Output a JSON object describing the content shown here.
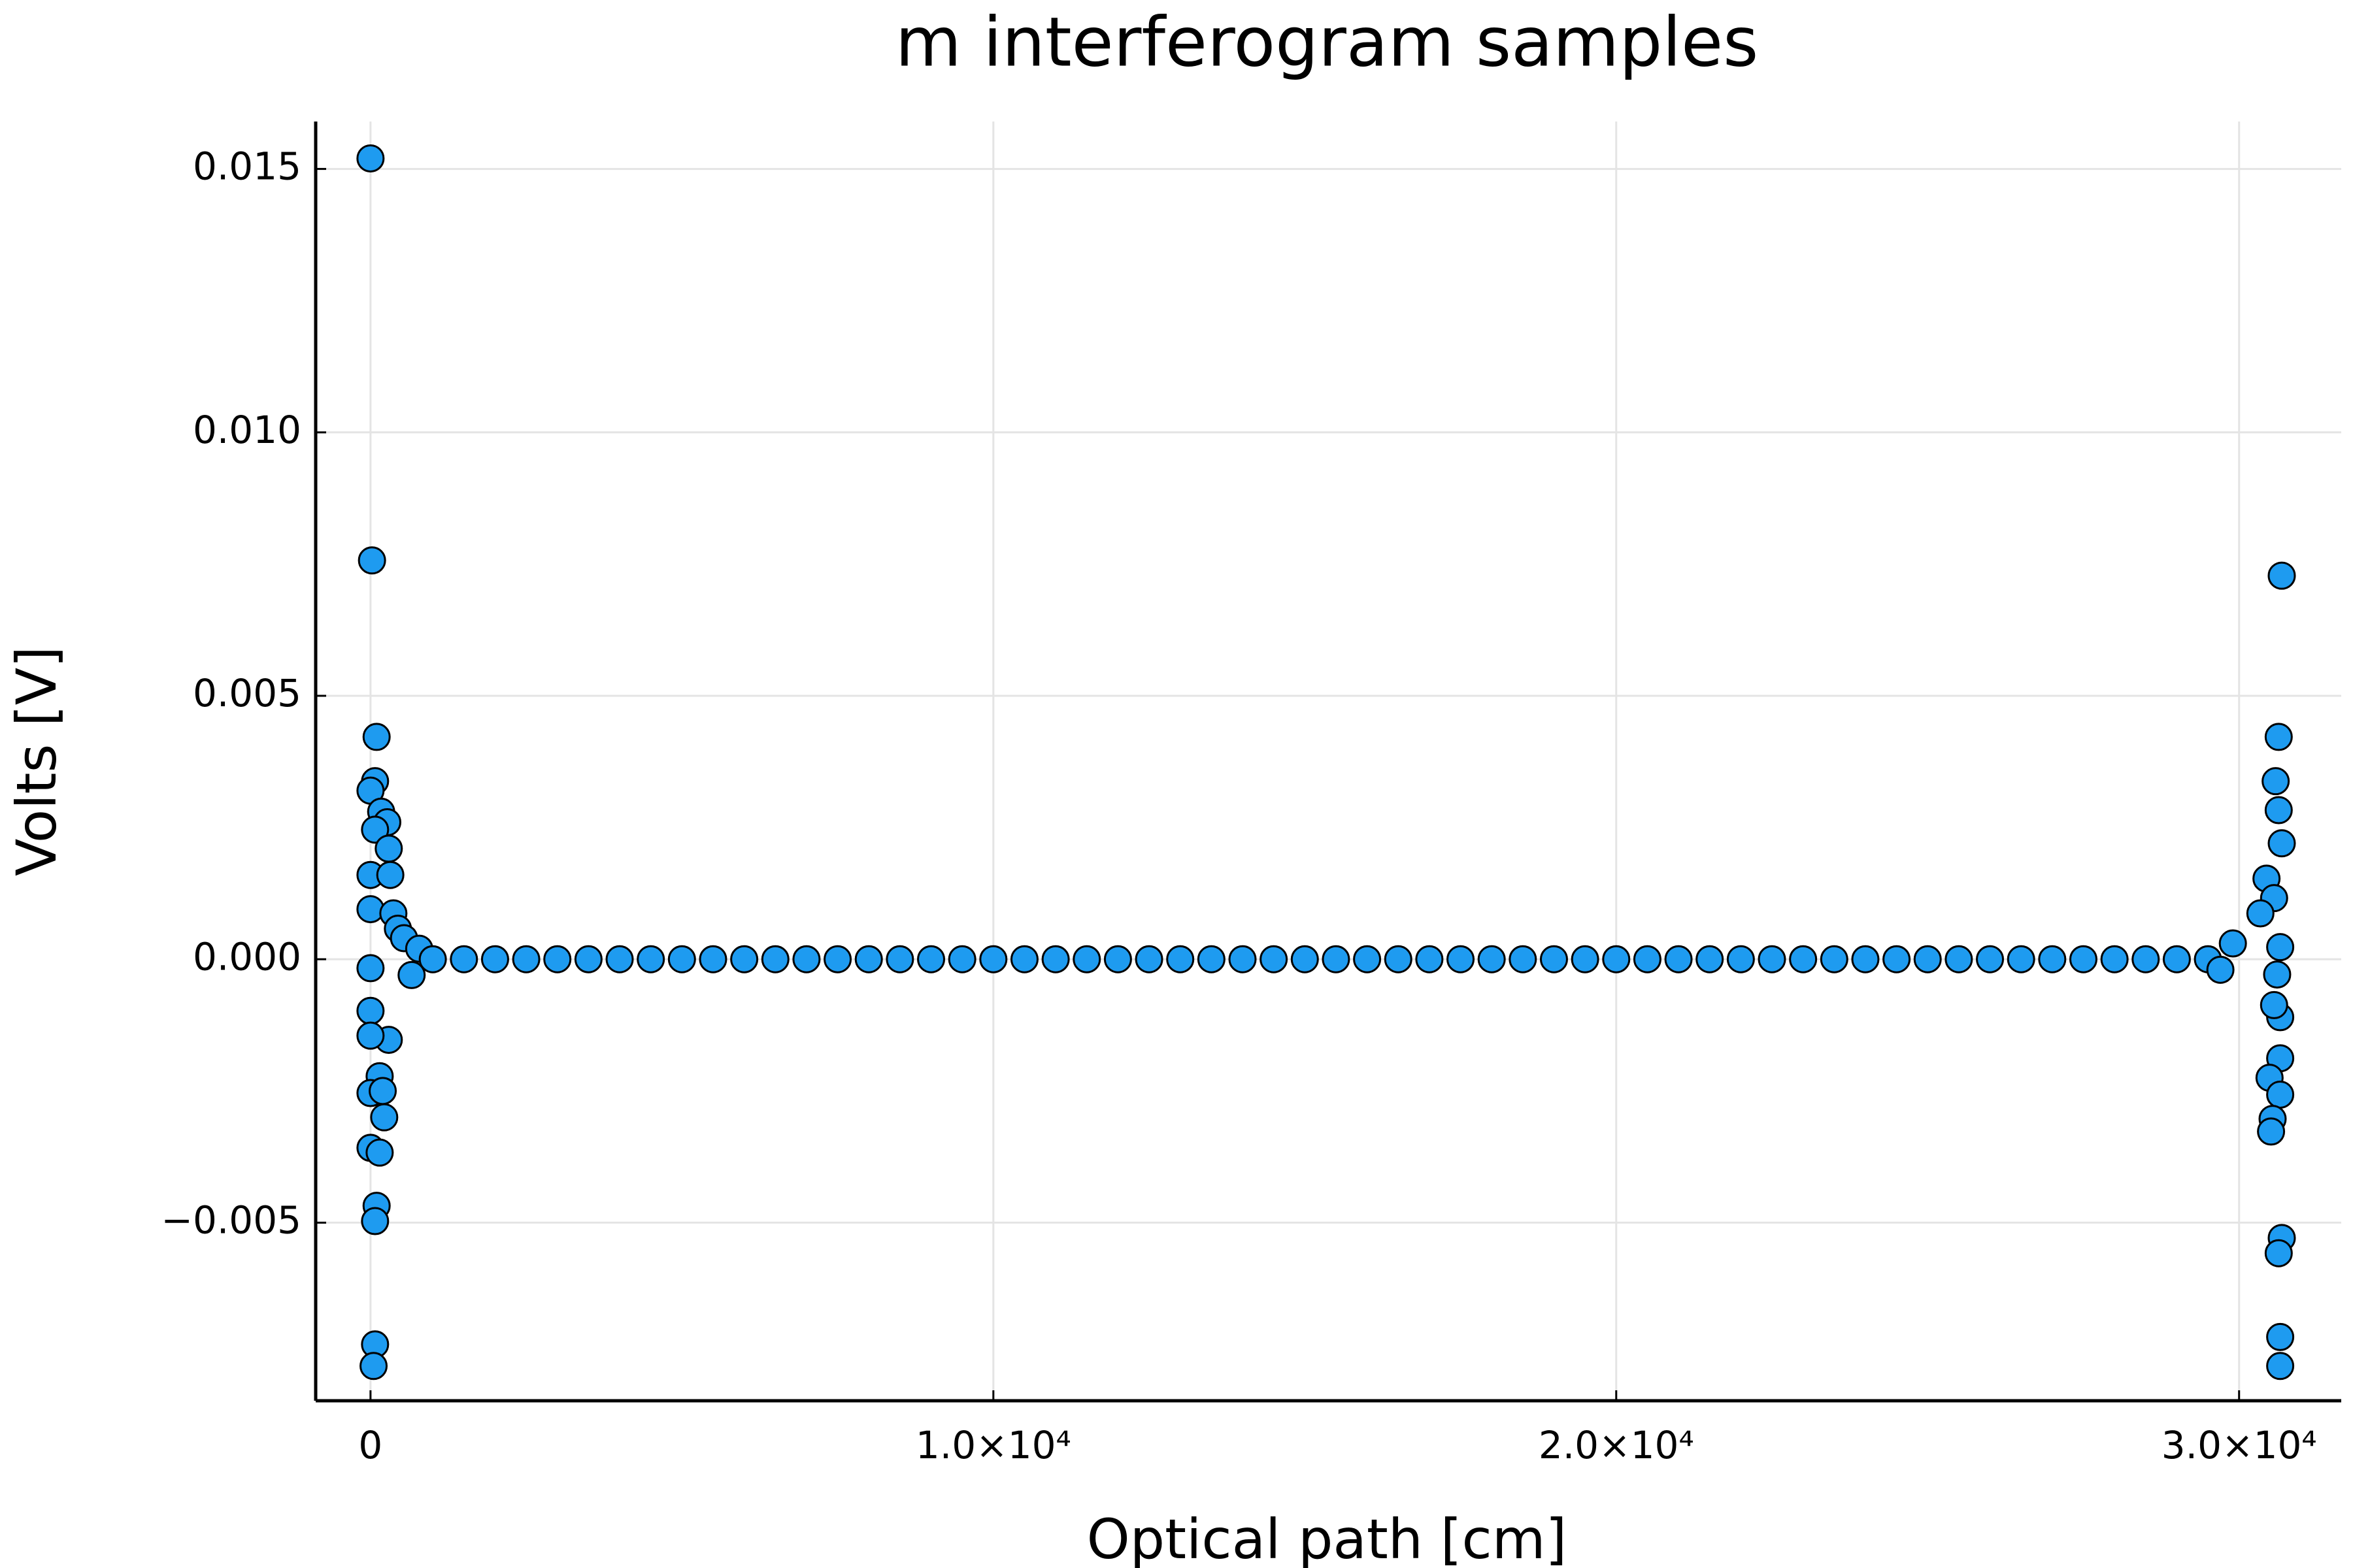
{
  "chart_data": {
    "type": "scatter",
    "title": "m interferogram samples",
    "x_label": "Optical path [cm]",
    "y_label": "Volts [V]",
    "color": "#1e9bf0",
    "grid": true,
    "xlim": [
      -880,
      31640
    ],
    "ylim": [
      -0.00838,
      0.0159
    ],
    "xticks": [
      0,
      {
        "value": 10000,
        "label": "1.0×10⁴"
      },
      {
        "value": 20000,
        "label": "2.0×10⁴"
      },
      {
        "value": 30000,
        "label": "3.0×10⁴"
      }
    ],
    "yticks": [
      {
        "value": -0.005,
        "label": "−0.005"
      },
      {
        "value": 0,
        "label": "0.000"
      },
      0.005,
      {
        "value": 0.01,
        "label": "0.010"
      },
      0.015
    ],
    "x": [
      0,
      24,
      98,
      73,
      0,
      171,
      269,
      73,
      293,
      0,
      318,
      0,
      367,
      440,
      0,
      0,
      293,
      0,
      147,
      0,
      196,
      220,
      0,
      147,
      98,
      73,
      73,
      49,
      538,
      660,
      782,
      1000,
      1500,
      2000,
      2500,
      3000,
      3500,
      4000,
      4500,
      5000,
      5500,
      6000,
      6500,
      7000,
      7500,
      8000,
      8500,
      9000,
      9500,
      10000,
      10500,
      11000,
      11500,
      12000,
      12500,
      13000,
      13500,
      14000,
      14500,
      15000,
      15500,
      16000,
      16500,
      17000,
      17500,
      18000,
      18500,
      19000,
      19500,
      20000,
      20500,
      21000,
      21500,
      22000,
      22500,
      23000,
      23500,
      24000,
      24500,
      25000,
      25500,
      26000,
      26500,
      27000,
      27500,
      28000,
      28500,
      29000,
      29500,
      30685,
      30636,
      30587,
      30636,
      30685,
      30440,
      30562,
      30342,
      30660,
      30611,
      30660,
      30562,
      30660,
      30489,
      30660,
      30538,
      30513,
      30685,
      30636,
      30660,
      30660,
      29900,
      29700
    ],
    "values": [
      0.0152,
      0.00757,
      0.00422,
      0.00338,
      0.0032,
      0.0028,
      0.0026,
      0.00246,
      0.0021,
      0.0016,
      0.0016,
      0.00095,
      0.00087,
      0.00058,
      -0.00017,
      -0.00098,
      -0.00153,
      -0.00145,
      -0.00222,
      -0.00254,
      -0.0025,
      -0.003,
      -0.00358,
      -0.00367,
      -0.00468,
      -0.00497,
      -0.00731,
      -0.00772,
      0.0004,
      -0.0003,
      0.0002,
      0,
      0,
      0,
      0,
      0,
      0,
      0,
      0,
      0,
      0,
      0,
      0,
      0,
      0,
      0,
      0,
      0,
      0,
      0,
      0,
      0,
      0,
      0,
      0,
      0,
      0,
      0,
      0,
      0,
      0,
      0,
      0,
      0,
      0,
      0,
      0,
      0,
      0,
      0,
      0,
      0,
      0,
      0,
      0,
      0,
      0,
      0,
      0,
      0,
      0,
      0,
      0,
      0,
      0,
      0,
      0,
      0,
      0,
      0.00728,
      0.00422,
      0.00338,
      0.00283,
      0.0022,
      0.00153,
      0.00116,
      0.00087,
      0.00023,
      -0.00029,
      -0.0011,
      -0.00087,
      -0.00188,
      -0.00225,
      -0.00257,
      -0.00303,
      -0.00327,
      -0.00529,
      -0.00558,
      -0.00717,
      -0.00772,
      0.0003,
      -0.0002
    ]
  }
}
